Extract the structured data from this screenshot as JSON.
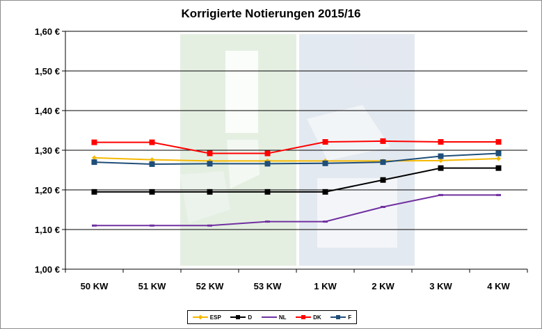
{
  "chart_data": {
    "type": "line",
    "title": "Korrigierte Notierungen 2015/16",
    "categories": [
      "50 KW",
      "51 KW",
      "52 KW",
      "53 KW",
      "1 KW",
      "2 KW",
      "3 KW",
      "4 KW"
    ],
    "ylim": [
      1.0,
      1.6
    ],
    "yticks": [
      "1,00 €",
      "1,10 €",
      "1,20 €",
      "1,30 €",
      "1,40 €",
      "1,50 €",
      "1,60 €"
    ],
    "grid": true,
    "legend_position": "bottom",
    "series": [
      {
        "name": "ESP",
        "color": "#f5b800",
        "marker": "diamond",
        "values": [
          1.281,
          1.276,
          1.273,
          1.273,
          1.273,
          1.273,
          1.274,
          1.279
        ]
      },
      {
        "name": "D",
        "color": "#000000",
        "marker": "square",
        "values": [
          1.195,
          1.195,
          1.195,
          1.195,
          1.195,
          1.225,
          1.255,
          1.255
        ]
      },
      {
        "name": "NL",
        "color": "#7030a0",
        "marker": "dash",
        "values": [
          1.11,
          1.11,
          1.11,
          1.12,
          1.12,
          1.157,
          1.187,
          1.187
        ]
      },
      {
        "name": "DK",
        "color": "#ff0000",
        "marker": "square",
        "values": [
          1.32,
          1.32,
          1.292,
          1.292,
          1.321,
          1.323,
          1.321,
          1.321
        ]
      },
      {
        "name": "F",
        "color": "#1f4e79",
        "marker": "square",
        "values": [
          1.27,
          1.265,
          1.266,
          1.266,
          1.267,
          1.27,
          1.285,
          1.292
        ]
      }
    ]
  }
}
